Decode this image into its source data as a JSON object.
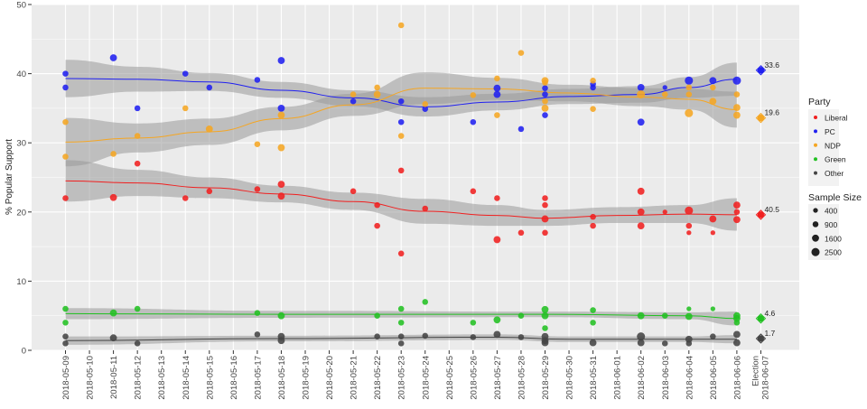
{
  "chart_data": {
    "type": "scatter",
    "title": "",
    "xlabel": "",
    "ylabel": "% Popular Support",
    "ylim": [
      0,
      50
    ],
    "yticks": [
      0,
      10,
      20,
      30,
      40,
      50
    ],
    "grid": true,
    "legend_placement": "right",
    "x_categories": [
      "2018-05-09",
      "2018-05-10",
      "2018-05-11",
      "2018-05-12",
      "2018-05-13",
      "2018-05-14",
      "2018-05-15",
      "2018-05-16",
      "2018-05-17",
      "2018-05-18",
      "2018-05-19",
      "2018-05-20",
      "2018-05-21",
      "2018-05-22",
      "2018-05-23",
      "2018-05-24",
      "2018-05-25",
      "2018-05-26",
      "2018-05-27",
      "2018-05-28",
      "2018-05-29",
      "2018-05-30",
      "2018-05-31",
      "2018-06-01",
      "2018-06-02",
      "2018-06-03",
      "2018-06-04",
      "2018-06-05",
      "2018-06-06",
      "Election 2018-06-07"
    ],
    "legend_party_title": "Party",
    "legend_size_title": "Sample Size",
    "size_levels": [
      400,
      900,
      1600,
      2500
    ],
    "series": [
      {
        "name": "Liberal",
        "color": "#f02020",
        "points": [
          [
            "2018-05-09",
            22,
            900
          ],
          [
            "2018-05-11",
            22.1,
            1600
          ],
          [
            "2018-05-12",
            27,
            900
          ],
          [
            "2018-05-14",
            22,
            900
          ],
          [
            "2018-05-15",
            23,
            900
          ],
          [
            "2018-05-17",
            23.3,
            900
          ],
          [
            "2018-05-18",
            24,
            1600
          ],
          [
            "2018-05-18",
            22.3,
            1600
          ],
          [
            "2018-05-21",
            23,
            900
          ],
          [
            "2018-05-22",
            21,
            900
          ],
          [
            "2018-05-22",
            18,
            900
          ],
          [
            "2018-05-23",
            26,
            900
          ],
          [
            "2018-05-23",
            14,
            900
          ],
          [
            "2018-05-24",
            20.5,
            900
          ],
          [
            "2018-05-26",
            23,
            900
          ],
          [
            "2018-05-27",
            22,
            900
          ],
          [
            "2018-05-27",
            16,
            1600
          ],
          [
            "2018-05-28",
            17,
            900
          ],
          [
            "2018-05-29",
            22,
            900
          ],
          [
            "2018-05-29",
            21,
            900
          ],
          [
            "2018-05-29",
            19,
            1600
          ],
          [
            "2018-05-29",
            17,
            900
          ],
          [
            "2018-05-31",
            19.3,
            900
          ],
          [
            "2018-05-31",
            18,
            900
          ],
          [
            "2018-06-02",
            23,
            1600
          ],
          [
            "2018-06-02",
            20,
            1600
          ],
          [
            "2018-06-02",
            18,
            1600
          ],
          [
            "2018-06-03",
            20,
            400
          ],
          [
            "2018-06-04",
            20.2,
            2500
          ],
          [
            "2018-06-04",
            18,
            900
          ],
          [
            "2018-06-04",
            17,
            400
          ],
          [
            "2018-06-05",
            19,
            1600
          ],
          [
            "2018-06-05",
            17,
            400
          ],
          [
            "2018-06-06",
            21,
            1600
          ],
          [
            "2018-06-06",
            20,
            900
          ],
          [
            "2018-06-06",
            18.9,
            1600
          ]
        ],
        "smooth": [
          [
            "2018-05-09",
            24.5,
            21.5,
            27.5
          ],
          [
            "2018-05-12",
            24.2,
            22.3,
            26.1
          ],
          [
            "2018-05-15",
            23.5,
            22,
            25
          ],
          [
            "2018-05-18",
            22.6,
            21.4,
            23.8
          ],
          [
            "2018-05-21",
            21.5,
            20.3,
            22.8
          ],
          [
            "2018-05-24",
            20.1,
            18.3,
            21.9
          ],
          [
            "2018-05-27",
            19.5,
            18,
            21
          ],
          [
            "2018-05-29",
            19.1,
            18,
            20.3
          ],
          [
            "2018-06-01",
            19.5,
            18.4,
            20.7
          ],
          [
            "2018-06-04",
            19.7,
            18.4,
            21
          ],
          [
            "2018-06-06",
            19.6,
            17.3,
            22
          ]
        ],
        "election": 19.6
      },
      {
        "name": "PC",
        "color": "#2020f0",
        "points": [
          [
            "2018-05-09",
            40,
            900
          ],
          [
            "2018-05-09",
            38,
            900
          ],
          [
            "2018-05-11",
            42.3,
            1600
          ],
          [
            "2018-05-12",
            35,
            900
          ],
          [
            "2018-05-14",
            40,
            900
          ],
          [
            "2018-05-15",
            38,
            900
          ],
          [
            "2018-05-17",
            39.1,
            900
          ],
          [
            "2018-05-18",
            41.9,
            1600
          ],
          [
            "2018-05-18",
            35,
            1600
          ],
          [
            "2018-05-21",
            36,
            900
          ],
          [
            "2018-05-23",
            36,
            900
          ],
          [
            "2018-05-23",
            33,
            900
          ],
          [
            "2018-05-24",
            34.9,
            900
          ],
          [
            "2018-05-26",
            33,
            900
          ],
          [
            "2018-05-27",
            37.9,
            1600
          ],
          [
            "2018-05-27",
            37,
            1600
          ],
          [
            "2018-05-28",
            32,
            900
          ],
          [
            "2018-05-29",
            37.9,
            900
          ],
          [
            "2018-05-29",
            37,
            900
          ],
          [
            "2018-05-29",
            34,
            900
          ],
          [
            "2018-05-31",
            38.5,
            900
          ],
          [
            "2018-05-31",
            38,
            900
          ],
          [
            "2018-06-02",
            38,
            1600
          ],
          [
            "2018-06-02",
            33,
            1600
          ],
          [
            "2018-06-03",
            38,
            400
          ],
          [
            "2018-06-04",
            39,
            2500
          ],
          [
            "2018-06-05",
            39,
            1600
          ],
          [
            "2018-06-06",
            39,
            2500
          ]
        ],
        "smooth": [
          [
            "2018-05-09",
            39.3,
            36.6,
            42
          ],
          [
            "2018-05-12",
            39.2,
            37.4,
            41
          ],
          [
            "2018-05-15",
            38.8,
            37.5,
            40.1
          ],
          [
            "2018-05-18",
            37.6,
            36.5,
            38.8
          ],
          [
            "2018-05-21",
            36.5,
            35.3,
            37.6
          ],
          [
            "2018-05-24",
            35.2,
            33.8,
            36.6
          ],
          [
            "2018-05-27",
            35.9,
            34.7,
            37.1
          ],
          [
            "2018-05-30",
            36.7,
            35.6,
            37.8
          ],
          [
            "2018-06-02",
            37,
            35.8,
            38.2
          ],
          [
            "2018-06-04",
            38,
            36.5,
            39.5
          ],
          [
            "2018-06-06",
            39.2,
            36.8,
            41.6
          ]
        ],
        "election": 40.5
      },
      {
        "name": "NDP",
        "color": "#f5a623",
        "points": [
          [
            "2018-05-09",
            33,
            900
          ],
          [
            "2018-05-09",
            28,
            900
          ],
          [
            "2018-05-11",
            28.4,
            900
          ],
          [
            "2018-05-12",
            31,
            900
          ],
          [
            "2018-05-14",
            35,
            900
          ],
          [
            "2018-05-15",
            32,
            1600
          ],
          [
            "2018-05-17",
            29.8,
            900
          ],
          [
            "2018-05-18",
            34,
            1600
          ],
          [
            "2018-05-18",
            29.3,
            1600
          ],
          [
            "2018-05-21",
            37,
            900
          ],
          [
            "2018-05-22",
            38,
            900
          ],
          [
            "2018-05-22",
            37,
            1600
          ],
          [
            "2018-05-23",
            47,
            900
          ],
          [
            "2018-05-23",
            31,
            900
          ],
          [
            "2018-05-24",
            35.6,
            900
          ],
          [
            "2018-05-26",
            36.9,
            900
          ],
          [
            "2018-05-27",
            39.3,
            900
          ],
          [
            "2018-05-27",
            34,
            900
          ],
          [
            "2018-05-28",
            43,
            900
          ],
          [
            "2018-05-29",
            39,
            1600
          ],
          [
            "2018-05-29",
            38.7,
            900
          ],
          [
            "2018-05-29",
            36,
            900
          ],
          [
            "2018-05-29",
            35,
            1600
          ],
          [
            "2018-05-31",
            39,
            900
          ],
          [
            "2018-05-31",
            34.9,
            900
          ],
          [
            "2018-06-02",
            37,
            2500
          ],
          [
            "2018-06-03",
            37,
            900
          ],
          [
            "2018-06-04",
            38,
            900
          ],
          [
            "2018-06-04",
            37,
            900
          ],
          [
            "2018-06-04",
            34.3,
            2500
          ],
          [
            "2018-06-05",
            38,
            900
          ],
          [
            "2018-06-05",
            36,
            1600
          ],
          [
            "2018-06-06",
            37,
            900
          ],
          [
            "2018-06-06",
            35.1,
            1600
          ],
          [
            "2018-06-06",
            34,
            1600
          ]
        ],
        "smooth": [
          [
            "2018-05-09",
            30.1,
            26.6,
            33.6
          ],
          [
            "2018-05-12",
            30.7,
            28.6,
            32.8
          ],
          [
            "2018-05-15",
            31.6,
            29.7,
            33.5
          ],
          [
            "2018-05-18",
            33.5,
            31.8,
            35.2
          ],
          [
            "2018-05-21",
            35.5,
            33.9,
            37.1
          ],
          [
            "2018-05-24",
            37.9,
            35.6,
            40.2
          ],
          [
            "2018-05-27",
            37.8,
            36.2,
            39.4
          ],
          [
            "2018-05-30",
            37.2,
            36,
            38.4
          ],
          [
            "2018-06-02",
            36.6,
            35.3,
            37.9
          ],
          [
            "2018-06-04",
            36.3,
            34.8,
            37.8
          ],
          [
            "2018-06-06",
            34.8,
            32.2,
            37.4
          ]
        ],
        "election": 33.6
      },
      {
        "name": "Green",
        "color": "#22c022",
        "points": [
          [
            "2018-05-09",
            6,
            900
          ],
          [
            "2018-05-09",
            4,
            900
          ],
          [
            "2018-05-11",
            5.4,
            1600
          ],
          [
            "2018-05-12",
            6,
            900
          ],
          [
            "2018-05-17",
            5.4,
            900
          ],
          [
            "2018-05-18",
            5,
            1600
          ],
          [
            "2018-05-22",
            5,
            900
          ],
          [
            "2018-05-23",
            6,
            900
          ],
          [
            "2018-05-23",
            4,
            900
          ],
          [
            "2018-05-24",
            7,
            900
          ],
          [
            "2018-05-26",
            4,
            900
          ],
          [
            "2018-05-27",
            4.4,
            1600
          ],
          [
            "2018-05-28",
            5,
            900
          ],
          [
            "2018-05-29",
            5.9,
            1600
          ],
          [
            "2018-05-29",
            5,
            1600
          ],
          [
            "2018-05-29",
            3.2,
            900
          ],
          [
            "2018-05-31",
            5.8,
            900
          ],
          [
            "2018-05-31",
            4,
            900
          ],
          [
            "2018-06-02",
            5,
            1600
          ],
          [
            "2018-06-03",
            5,
            900
          ],
          [
            "2018-06-04",
            6,
            400
          ],
          [
            "2018-06-04",
            4.9,
            1600
          ],
          [
            "2018-06-05",
            6,
            400
          ],
          [
            "2018-06-06",
            5,
            1600
          ],
          [
            "2018-06-06",
            4.6,
            1600
          ],
          [
            "2018-06-06",
            4,
            900
          ]
        ],
        "smooth": [
          [
            "2018-05-09",
            5.3,
            4.5,
            6.1
          ],
          [
            "2018-05-18",
            5.2,
            4.7,
            5.7
          ],
          [
            "2018-05-29",
            5.2,
            4.8,
            5.6
          ],
          [
            "2018-06-04",
            5,
            4.5,
            5.5
          ],
          [
            "2018-06-06",
            4.6,
            3.6,
            5.6
          ]
        ],
        "election": 4.6
      },
      {
        "name": "Other",
        "color": "#444444",
        "points": [
          [
            "2018-05-09",
            2,
            900
          ],
          [
            "2018-05-09",
            1,
            900
          ],
          [
            "2018-05-11",
            1.8,
            1600
          ],
          [
            "2018-05-12",
            1,
            900
          ],
          [
            "2018-05-17",
            2.3,
            900
          ],
          [
            "2018-05-18",
            2,
            1600
          ],
          [
            "2018-05-18",
            1.4,
            1600
          ],
          [
            "2018-05-22",
            2,
            900
          ],
          [
            "2018-05-23",
            2,
            900
          ],
          [
            "2018-05-23",
            1,
            900
          ],
          [
            "2018-05-24",
            2.1,
            900
          ],
          [
            "2018-05-26",
            1.9,
            900
          ],
          [
            "2018-05-27",
            2.3,
            1600
          ],
          [
            "2018-05-28",
            1.9,
            900
          ],
          [
            "2018-05-29",
            2,
            1600
          ],
          [
            "2018-05-29",
            1.4,
            1600
          ],
          [
            "2018-05-29",
            1.1,
            1600
          ],
          [
            "2018-05-31",
            1.1,
            1600
          ],
          [
            "2018-06-02",
            2,
            2500
          ],
          [
            "2018-06-02",
            1.1,
            1600
          ],
          [
            "2018-06-03",
            1,
            900
          ],
          [
            "2018-06-04",
            1.6,
            1600
          ],
          [
            "2018-06-04",
            1,
            900
          ],
          [
            "2018-06-05",
            2,
            900
          ],
          [
            "2018-06-06",
            2.3,
            1600
          ],
          [
            "2018-06-06",
            1.1,
            1600
          ]
        ],
        "smooth": [
          [
            "2018-05-09",
            1.4,
            0.8,
            2
          ],
          [
            "2018-05-18",
            1.7,
            1.3,
            2.1
          ],
          [
            "2018-05-27",
            1.9,
            1.5,
            2.3
          ],
          [
            "2018-05-30",
            1.6,
            1.2,
            2
          ],
          [
            "2018-06-04",
            1.6,
            1.2,
            2
          ],
          [
            "2018-06-06",
            1.6,
            1,
            2.2
          ]
        ],
        "election": 1.7
      }
    ],
    "election_labels": [
      "40.5",
      "33.6",
      "19.6",
      "4.6",
      "1.7"
    ]
  }
}
